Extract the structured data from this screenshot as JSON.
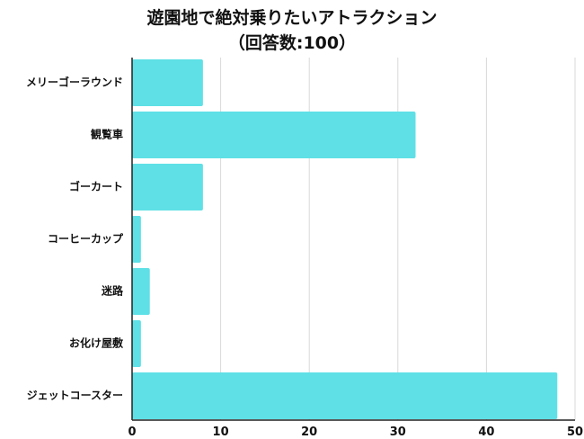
{
  "title": "遊園地で絶対乗りたいアトラクション",
  "subtitle": "（回答数:100）",
  "colors": {
    "bar": "#5ee0e6",
    "grid": "#d9d9d9",
    "axis": "#222222",
    "text": "#111111"
  },
  "chart_data": {
    "type": "bar",
    "orientation": "horizontal",
    "title": "遊園地で絶対乗りたいアトラクション",
    "subtitle": "（回答数:100）",
    "categories": [
      "メリーゴーラウンド",
      "観覧車",
      "ゴーカート",
      "コーヒーカップ",
      "迷路",
      "お化け屋敷",
      "ジェットコースター"
    ],
    "values": [
      8,
      32,
      8,
      1,
      2,
      1,
      48
    ],
    "xlim": [
      0,
      50
    ],
    "xticks": [
      0,
      10,
      20,
      30,
      40,
      50
    ],
    "xtick_labels": [
      "0",
      "10",
      "20",
      "30",
      "40",
      "50"
    ],
    "grid": true,
    "legend": "none"
  }
}
